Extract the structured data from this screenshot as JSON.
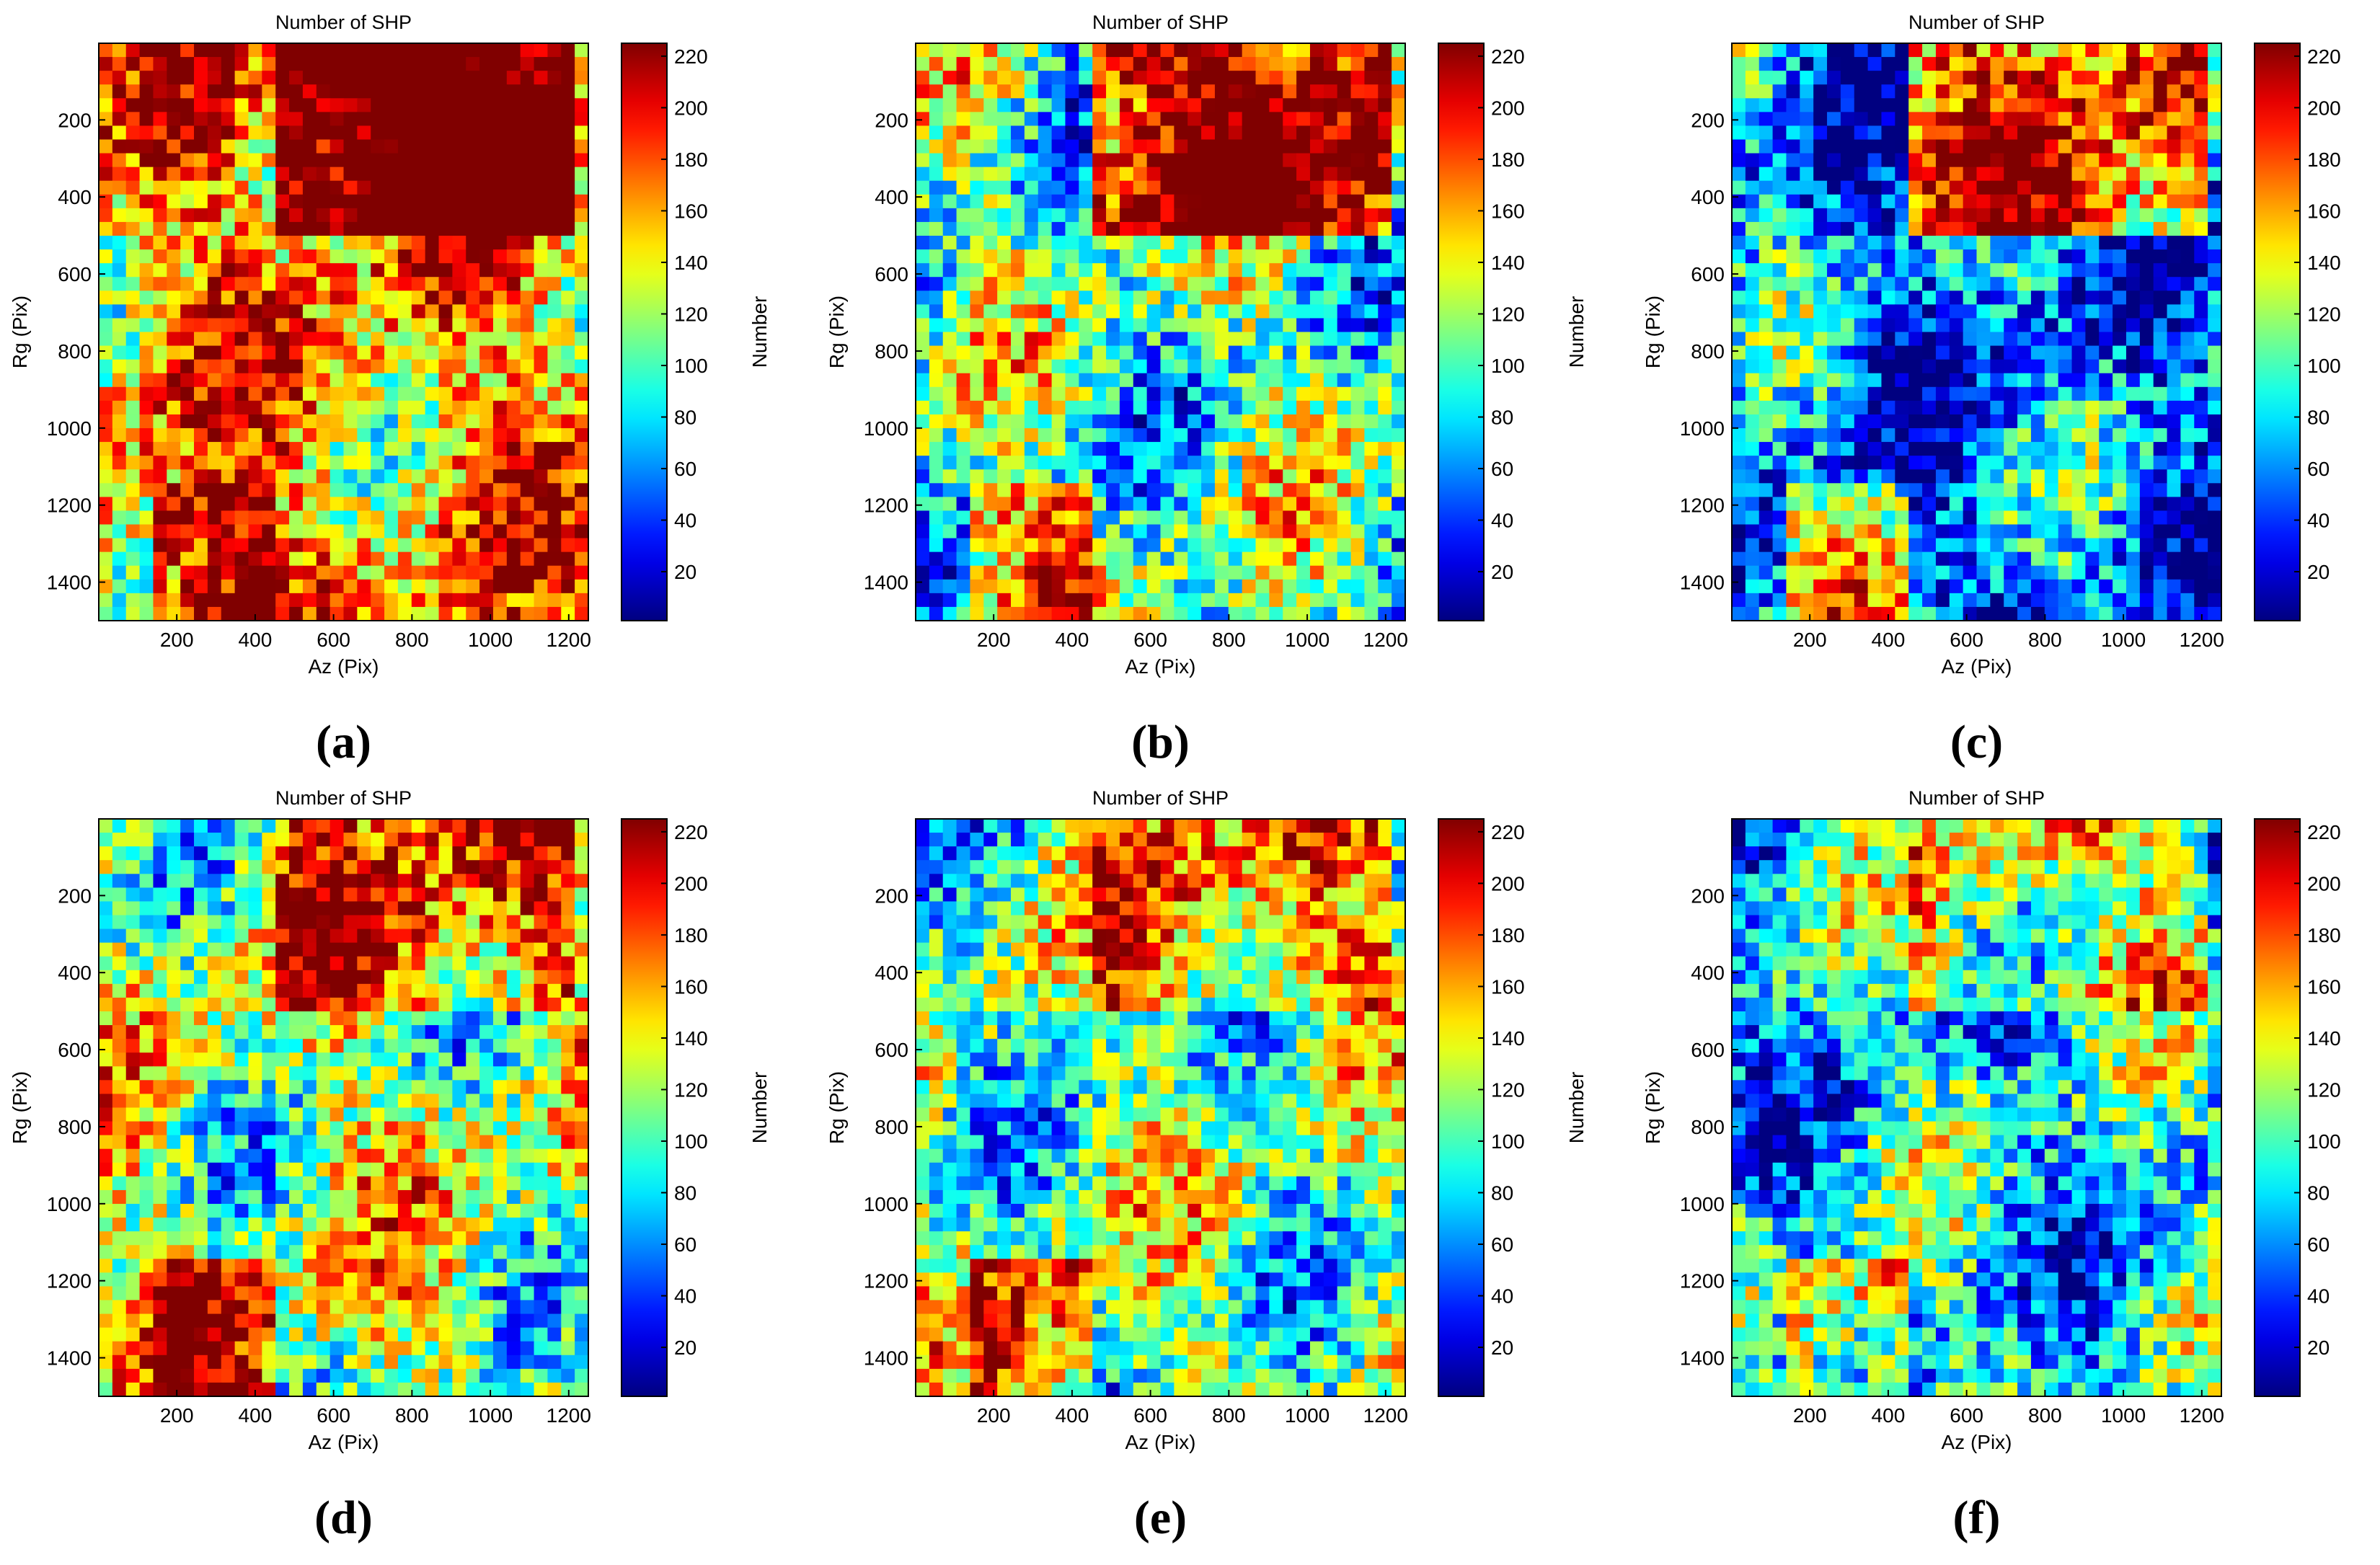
{
  "figure": {
    "panels": [
      {
        "letter": "(a)",
        "title": "Number of SHP",
        "dominant": "high"
      },
      {
        "letter": "(b)",
        "title": "Number of SHP",
        "dominant": "mixed"
      },
      {
        "letter": "(c)",
        "title": "Number of SHP",
        "dominant": "low"
      },
      {
        "letter": "(d)",
        "title": "Number of SHP",
        "dominant": "medium-high"
      },
      {
        "letter": "(e)",
        "title": "Number of SHP",
        "dominant": "medium"
      },
      {
        "letter": "(f)",
        "title": "Number of SHP",
        "dominant": "medium-low"
      }
    ]
  },
  "chart_data": {
    "type": "heatmap",
    "title": "Number of SHP",
    "xlabel": "Az (Pix)",
    "ylabel": "Rg (Pix)",
    "colorbar_label": "Number",
    "colormap": "jet",
    "xlim": [
      1,
      1250
    ],
    "ylim": [
      1,
      1500
    ],
    "y_reversed": true,
    "clim": [
      1,
      225
    ],
    "x_ticks": [
      200,
      400,
      600,
      800,
      1000,
      1200
    ],
    "x_tick_labels": [
      "200",
      "400",
      "600",
      "800",
      "1000",
      "1200"
    ],
    "y_ticks": [
      200,
      400,
      600,
      800,
      1000,
      1200,
      1400
    ],
    "y_tick_labels": [
      "200",
      "400",
      "600",
      "800",
      "1000",
      "1200",
      "1400"
    ],
    "colorbar_ticks": [
      20,
      40,
      60,
      80,
      100,
      120,
      140,
      160,
      180,
      200,
      220
    ],
    "colorbar_tick_labels": [
      "20",
      "40",
      "60",
      "80",
      "100",
      "120",
      "140",
      "160",
      "180",
      "200",
      "220"
    ],
    "colors": {
      "jet_low": "#00008f",
      "jet_mid": "#7fff7f",
      "jet_high": "#800000"
    }
  }
}
